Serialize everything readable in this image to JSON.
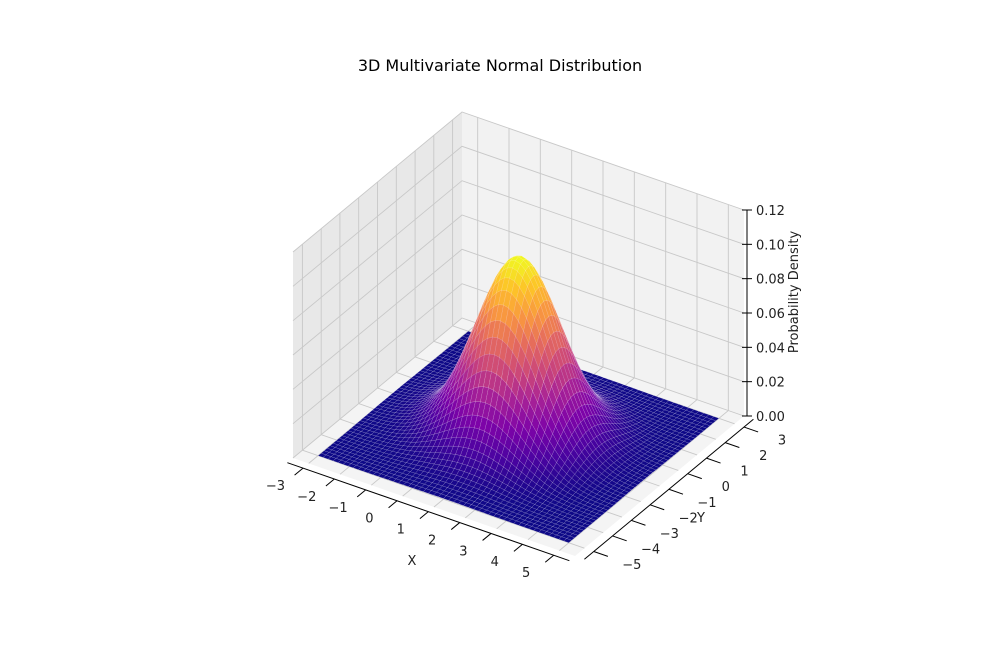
{
  "chart_data": {
    "type": "surface3d",
    "title": "3D Multivariate Normal Distribution",
    "xlabel": "X",
    "ylabel": "Y",
    "zlabel": "Probability Density",
    "colormap": "plasma",
    "x_ticks": [
      "−3",
      "−2",
      "−1",
      "0",
      "1",
      "2",
      "3",
      "4",
      "5"
    ],
    "y_ticks": [
      "−5",
      "−4",
      "−3",
      "−2",
      "−1",
      "0",
      "1",
      "2",
      "3"
    ],
    "z_ticks": [
      "0.00",
      "0.02",
      "0.04",
      "0.06",
      "0.08",
      "0.10",
      "0.12"
    ],
    "xlim": [
      -3.5,
      5.5
    ],
    "ylim": [
      -5.5,
      3.5
    ],
    "zlim": [
      0,
      0.12
    ],
    "peak": {
      "x": 1,
      "y": -1,
      "z": 0.105
    },
    "grid": true,
    "legend": "none",
    "colors": {
      "low": "#0d0887",
      "mid": "#cc4778",
      "high": "#f0f921",
      "pane_back": "#f2f2f2",
      "pane_side": "#e8e8e8",
      "grid": "#c8c8c8"
    }
  }
}
